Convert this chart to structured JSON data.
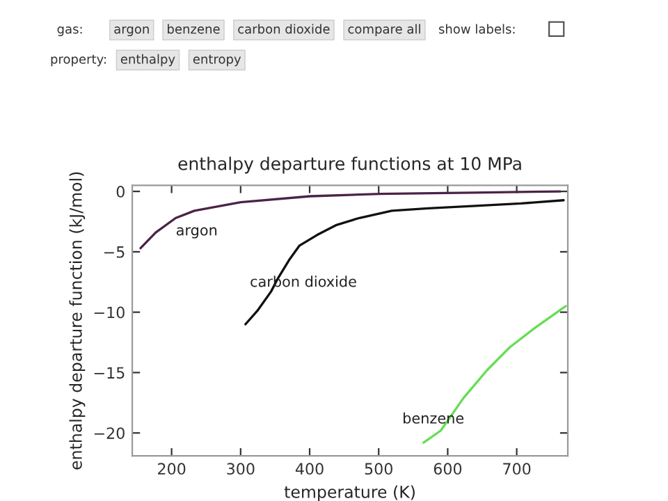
{
  "chart_data": {
    "type": "line",
    "title": "enthalpy departure functions at 10 MPa",
    "xlabel": "temperature (K)",
    "ylabel": "enthalpy departure function (kJ/mol)",
    "series": [
      {
        "name": "argon",
        "color": "#4b2347",
        "x": [
          155,
          177,
          206,
          233,
          300,
          401,
          502,
          636,
          763
        ],
        "values": [
          -4.7,
          -3.4,
          -2.2,
          -1.6,
          -0.9,
          -0.4,
          -0.2,
          -0.1,
          0.0
        ]
      },
      {
        "name": "carbon dioxide",
        "color": "#111111",
        "x": [
          307,
          324,
          344,
          354,
          370,
          385,
          411,
          438,
          472,
          519,
          572,
          640,
          706,
          768
        ],
        "values": [
          -11.0,
          -9.9,
          -8.3,
          -7.2,
          -5.7,
          -4.5,
          -3.6,
          -2.8,
          -2.2,
          -1.6,
          -1.4,
          -1.2,
          -1.0,
          -0.73
        ]
      },
      {
        "name": "benzene",
        "color": "#66dd55",
        "x": [
          565,
          590,
          623,
          657,
          690,
          724,
          771
        ],
        "values": [
          -20.8,
          -19.8,
          -17.1,
          -14.8,
          -12.9,
          -11.4,
          -9.5
        ]
      }
    ],
    "xlim": [
      143,
      774
    ],
    "ylim": [
      -21.9,
      0.5
    ],
    "xticks": [
      200,
      300,
      400,
      500,
      600,
      700
    ],
    "yticks": [
      {
        "value": 0,
        "label": "0"
      },
      {
        "value": -5,
        "label": "−5"
      },
      {
        "value": -10,
        "label": "−10"
      },
      {
        "value": -15,
        "label": "−15"
      },
      {
        "value": -20,
        "label": "−20"
      }
    ],
    "grid": false,
    "legend": false,
    "annotations": [
      "gas:",
      "argon",
      "benzene",
      "carbon dioxide",
      "compare all",
      "show labels:",
      "property:",
      "enthalpy",
      "entropy"
    ]
  }
}
